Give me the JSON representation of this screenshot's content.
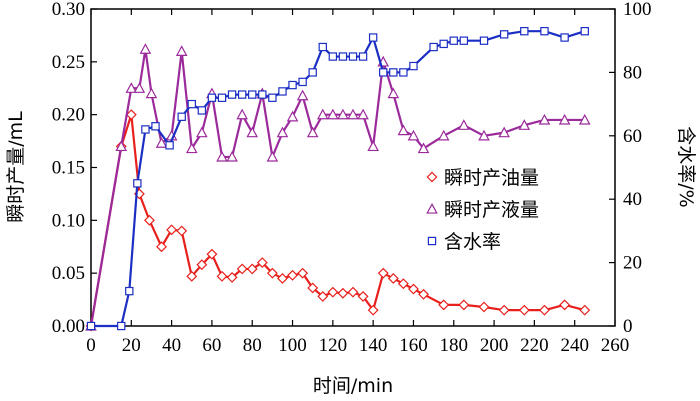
{
  "chart_data": {
    "type": "line",
    "xlabel": "时间/min",
    "ylabel_left": "瞬时产量/mL",
    "ylabel_right": "含水率/%",
    "xlim": [
      0,
      260
    ],
    "ylim_left": [
      0,
      0.3
    ],
    "ylim_right": [
      0,
      100
    ],
    "x_ticks": [
      "0",
      "20",
      "40",
      "60",
      "80",
      "100",
      "120",
      "140",
      "160",
      "180",
      "200",
      "220",
      "240",
      "260"
    ],
    "y_left_ticks": [
      "0.00",
      "0.05",
      "0.10",
      "0.15",
      "0.20",
      "0.25",
      "0.30"
    ],
    "y_right_ticks": [
      "0",
      "20",
      "40",
      "60",
      "80",
      "100"
    ],
    "grid": false,
    "legend_position": "center-right",
    "series": [
      {
        "name": "瞬时产油量",
        "axis": "left",
        "color": "#e8201c",
        "marker": "diamond-open",
        "x": [
          0,
          15,
          20,
          24,
          29,
          35,
          40,
          45,
          50,
          55,
          60,
          65,
          70,
          75,
          80,
          85,
          90,
          95,
          100,
          105,
          110,
          115,
          120,
          125,
          130,
          135,
          140,
          145,
          150,
          155,
          160,
          165,
          175,
          185,
          195,
          205,
          215,
          225,
          235,
          245
        ],
        "values": [
          0.0,
          0.17,
          0.2,
          0.125,
          0.1,
          0.075,
          0.091,
          0.09,
          0.047,
          0.058,
          0.068,
          0.047,
          0.046,
          0.054,
          0.054,
          0.06,
          0.05,
          0.045,
          0.048,
          0.05,
          0.036,
          0.028,
          0.032,
          0.031,
          0.032,
          0.028,
          0.015,
          0.05,
          0.045,
          0.04,
          0.035,
          0.03,
          0.02,
          0.02,
          0.018,
          0.015,
          0.015,
          0.015,
          0.02,
          0.015
        ]
      },
      {
        "name": "瞬时产液量",
        "axis": "left",
        "color": "#9b2a9b",
        "marker": "triangle-open",
        "x": [
          0,
          15,
          20,
          24,
          27,
          30,
          35,
          40,
          45,
          50,
          55,
          60,
          65,
          70,
          75,
          80,
          85,
          90,
          95,
          100,
          105,
          110,
          115,
          120,
          125,
          130,
          135,
          140,
          145,
          150,
          155,
          160,
          165,
          175,
          185,
          195,
          205,
          215,
          225,
          235,
          245
        ],
        "values": [
          0.0,
          0.17,
          0.225,
          0.225,
          0.262,
          0.22,
          0.173,
          0.18,
          0.26,
          0.168,
          0.183,
          0.22,
          0.16,
          0.16,
          0.2,
          0.183,
          0.22,
          0.16,
          0.183,
          0.198,
          0.218,
          0.183,
          0.2,
          0.2,
          0.2,
          0.2,
          0.2,
          0.17,
          0.25,
          0.22,
          0.185,
          0.18,
          0.168,
          0.18,
          0.19,
          0.18,
          0.183,
          0.19,
          0.195,
          0.195,
          0.195
        ]
      },
      {
        "name": "含水率",
        "axis": "right",
        "color": "#1c2fc4",
        "marker": "square-open",
        "x": [
          0,
          15,
          19,
          23,
          27,
          32,
          39,
          45,
          50,
          55,
          60,
          65,
          70,
          75,
          80,
          85,
          90,
          95,
          100,
          105,
          110,
          115,
          120,
          125,
          130,
          135,
          140,
          145,
          150,
          155,
          160,
          170,
          175,
          180,
          185,
          195,
          205,
          215,
          225,
          235,
          245
        ],
        "values": [
          0,
          0,
          11,
          45,
          62,
          63,
          57,
          66,
          70,
          68,
          72,
          72,
          73,
          73,
          73,
          73,
          72,
          74,
          76,
          77,
          80,
          88,
          85,
          85,
          85,
          85,
          91,
          80,
          80,
          80,
          82,
          88,
          89,
          90,
          90,
          90,
          92,
          93,
          93,
          91,
          93
        ]
      }
    ]
  }
}
